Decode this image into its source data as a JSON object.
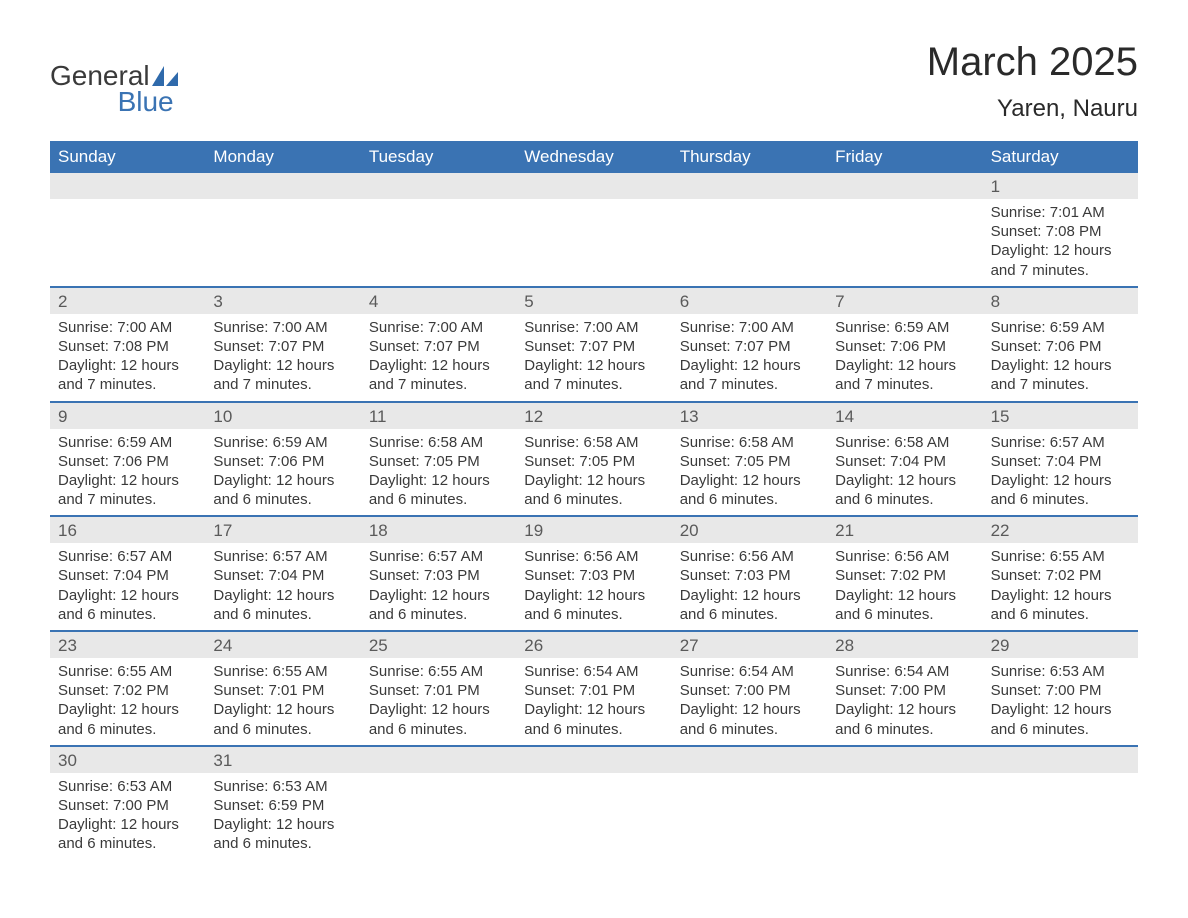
{
  "logo": {
    "text_general": "General",
    "text_blue": "Blue",
    "sail_color": "#2f6aab"
  },
  "title": "March 2025",
  "location": "Yaren, Nauru",
  "colors": {
    "header_bg": "#3a73b3",
    "header_text": "#ffffff",
    "daynum_bg": "#e8e8e8",
    "border": "#3a73b3",
    "body_bg": "#ffffff",
    "text": "#3a3a3a"
  },
  "dow": [
    "Sunday",
    "Monday",
    "Tuesday",
    "Wednesday",
    "Thursday",
    "Friday",
    "Saturday"
  ],
  "weeks": [
    [
      null,
      null,
      null,
      null,
      null,
      null,
      {
        "n": "1",
        "sr": "7:01 AM",
        "ss": "7:08 PM",
        "dl": "12 hours and 7 minutes."
      }
    ],
    [
      {
        "n": "2",
        "sr": "7:00 AM",
        "ss": "7:08 PM",
        "dl": "12 hours and 7 minutes."
      },
      {
        "n": "3",
        "sr": "7:00 AM",
        "ss": "7:07 PM",
        "dl": "12 hours and 7 minutes."
      },
      {
        "n": "4",
        "sr": "7:00 AM",
        "ss": "7:07 PM",
        "dl": "12 hours and 7 minutes."
      },
      {
        "n": "5",
        "sr": "7:00 AM",
        "ss": "7:07 PM",
        "dl": "12 hours and 7 minutes."
      },
      {
        "n": "6",
        "sr": "7:00 AM",
        "ss": "7:07 PM",
        "dl": "12 hours and 7 minutes."
      },
      {
        "n": "7",
        "sr": "6:59 AM",
        "ss": "7:06 PM",
        "dl": "12 hours and 7 minutes."
      },
      {
        "n": "8",
        "sr": "6:59 AM",
        "ss": "7:06 PM",
        "dl": "12 hours and 7 minutes."
      }
    ],
    [
      {
        "n": "9",
        "sr": "6:59 AM",
        "ss": "7:06 PM",
        "dl": "12 hours and 7 minutes."
      },
      {
        "n": "10",
        "sr": "6:59 AM",
        "ss": "7:06 PM",
        "dl": "12 hours and 6 minutes."
      },
      {
        "n": "11",
        "sr": "6:58 AM",
        "ss": "7:05 PM",
        "dl": "12 hours and 6 minutes."
      },
      {
        "n": "12",
        "sr": "6:58 AM",
        "ss": "7:05 PM",
        "dl": "12 hours and 6 minutes."
      },
      {
        "n": "13",
        "sr": "6:58 AM",
        "ss": "7:05 PM",
        "dl": "12 hours and 6 minutes."
      },
      {
        "n": "14",
        "sr": "6:58 AM",
        "ss": "7:04 PM",
        "dl": "12 hours and 6 minutes."
      },
      {
        "n": "15",
        "sr": "6:57 AM",
        "ss": "7:04 PM",
        "dl": "12 hours and 6 minutes."
      }
    ],
    [
      {
        "n": "16",
        "sr": "6:57 AM",
        "ss": "7:04 PM",
        "dl": "12 hours and 6 minutes."
      },
      {
        "n": "17",
        "sr": "6:57 AM",
        "ss": "7:04 PM",
        "dl": "12 hours and 6 minutes."
      },
      {
        "n": "18",
        "sr": "6:57 AM",
        "ss": "7:03 PM",
        "dl": "12 hours and 6 minutes."
      },
      {
        "n": "19",
        "sr": "6:56 AM",
        "ss": "7:03 PM",
        "dl": "12 hours and 6 minutes."
      },
      {
        "n": "20",
        "sr": "6:56 AM",
        "ss": "7:03 PM",
        "dl": "12 hours and 6 minutes."
      },
      {
        "n": "21",
        "sr": "6:56 AM",
        "ss": "7:02 PM",
        "dl": "12 hours and 6 minutes."
      },
      {
        "n": "22",
        "sr": "6:55 AM",
        "ss": "7:02 PM",
        "dl": "12 hours and 6 minutes."
      }
    ],
    [
      {
        "n": "23",
        "sr": "6:55 AM",
        "ss": "7:02 PM",
        "dl": "12 hours and 6 minutes."
      },
      {
        "n": "24",
        "sr": "6:55 AM",
        "ss": "7:01 PM",
        "dl": "12 hours and 6 minutes."
      },
      {
        "n": "25",
        "sr": "6:55 AM",
        "ss": "7:01 PM",
        "dl": "12 hours and 6 minutes."
      },
      {
        "n": "26",
        "sr": "6:54 AM",
        "ss": "7:01 PM",
        "dl": "12 hours and 6 minutes."
      },
      {
        "n": "27",
        "sr": "6:54 AM",
        "ss": "7:00 PM",
        "dl": "12 hours and 6 minutes."
      },
      {
        "n": "28",
        "sr": "6:54 AM",
        "ss": "7:00 PM",
        "dl": "12 hours and 6 minutes."
      },
      {
        "n": "29",
        "sr": "6:53 AM",
        "ss": "7:00 PM",
        "dl": "12 hours and 6 minutes."
      }
    ],
    [
      {
        "n": "30",
        "sr": "6:53 AM",
        "ss": "7:00 PM",
        "dl": "12 hours and 6 minutes."
      },
      {
        "n": "31",
        "sr": "6:53 AM",
        "ss": "6:59 PM",
        "dl": "12 hours and 6 minutes."
      },
      null,
      null,
      null,
      null,
      null
    ]
  ],
  "labels": {
    "sunrise": "Sunrise:",
    "sunset": "Sunset:",
    "daylight": "Daylight:"
  }
}
